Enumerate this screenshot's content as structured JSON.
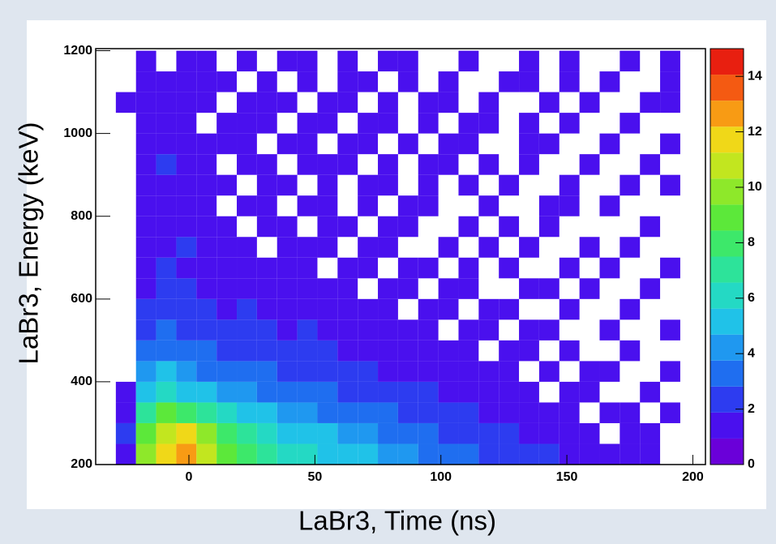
{
  "chart_data": {
    "type": "heatmap",
    "x_label": "LaBr3, Time (ns)",
    "y_label": "LaBr3, Energy (keV)",
    "xbins": [
      -37,
      -29,
      -21,
      -13,
      -5,
      3,
      11,
      19,
      27,
      35,
      43,
      51,
      59,
      67,
      75,
      83,
      91,
      99,
      107,
      115,
      123,
      131,
      139,
      147,
      155,
      163,
      171,
      179,
      187,
      195,
      203
    ],
    "ybins": [
      200,
      250,
      300,
      350,
      400,
      450,
      500,
      550,
      600,
      650,
      700,
      750,
      800,
      850,
      900,
      950,
      1000,
      1050,
      1100,
      1150,
      1200
    ],
    "z": [
      [
        0,
        1,
        10,
        12,
        13,
        11,
        9,
        8,
        7,
        6,
        6,
        5,
        5,
        5,
        4,
        4,
        3,
        3,
        3,
        2,
        2,
        2,
        2,
        1,
        1,
        1,
        1,
        1,
        0,
        0
      ],
      [
        0,
        2,
        9,
        11,
        12,
        10,
        8,
        7,
        6,
        5,
        5,
        5,
        4,
        4,
        3,
        3,
        3,
        2,
        2,
        2,
        2,
        1,
        1,
        1,
        1,
        0,
        1,
        1,
        0,
        0
      ],
      [
        0,
        1,
        7,
        9,
        8,
        7,
        6,
        5,
        5,
        4,
        4,
        3,
        3,
        3,
        3,
        2,
        2,
        2,
        2,
        1,
        1,
        1,
        1,
        1,
        0,
        1,
        1,
        0,
        1,
        0
      ],
      [
        0,
        1,
        5,
        6,
        5,
        5,
        4,
        4,
        3,
        3,
        3,
        3,
        2,
        2,
        2,
        2,
        2,
        1,
        1,
        1,
        1,
        1,
        0,
        1,
        1,
        0,
        0,
        1,
        0,
        0
      ],
      [
        0,
        0,
        4,
        5,
        4,
        3,
        3,
        3,
        3,
        2,
        2,
        2,
        2,
        2,
        1,
        1,
        1,
        1,
        1,
        1,
        1,
        0,
        1,
        0,
        1,
        1,
        0,
        0,
        1,
        0
      ],
      [
        0,
        0,
        3,
        3,
        3,
        3,
        2,
        2,
        2,
        2,
        2,
        2,
        1,
        1,
        1,
        1,
        1,
        1,
        1,
        0,
        1,
        1,
        0,
        1,
        0,
        0,
        1,
        0,
        0,
        0
      ],
      [
        0,
        0,
        2,
        3,
        2,
        2,
        2,
        2,
        2,
        1,
        2,
        1,
        1,
        1,
        1,
        1,
        1,
        0,
        1,
        1,
        0,
        1,
        1,
        0,
        0,
        1,
        0,
        0,
        1,
        0
      ],
      [
        0,
        0,
        2,
        2,
        2,
        2,
        1,
        2,
        1,
        1,
        1,
        1,
        1,
        1,
        1,
        0,
        1,
        1,
        0,
        1,
        1,
        0,
        0,
        1,
        0,
        0,
        1,
        0,
        0,
        0
      ],
      [
        0,
        0,
        1,
        2,
        2,
        1,
        1,
        1,
        1,
        1,
        1,
        1,
        1,
        0,
        1,
        1,
        0,
        1,
        1,
        0,
        0,
        1,
        1,
        0,
        1,
        0,
        0,
        1,
        0,
        0
      ],
      [
        0,
        0,
        1,
        2,
        1,
        1,
        1,
        1,
        1,
        1,
        1,
        0,
        1,
        1,
        0,
        1,
        1,
        0,
        1,
        0,
        1,
        0,
        0,
        1,
        0,
        1,
        0,
        0,
        1,
        0
      ],
      [
        0,
        0,
        1,
        1,
        2,
        1,
        1,
        1,
        0,
        1,
        1,
        1,
        0,
        1,
        1,
        0,
        0,
        1,
        0,
        1,
        0,
        1,
        0,
        0,
        1,
        0,
        1,
        0,
        0,
        0
      ],
      [
        0,
        0,
        1,
        1,
        1,
        1,
        1,
        0,
        1,
        1,
        0,
        1,
        1,
        0,
        1,
        1,
        0,
        0,
        1,
        0,
        1,
        0,
        1,
        0,
        0,
        0,
        0,
        1,
        0,
        0
      ],
      [
        0,
        0,
        1,
        1,
        1,
        1,
        0,
        1,
        1,
        0,
        1,
        1,
        0,
        1,
        0,
        1,
        1,
        0,
        0,
        1,
        0,
        0,
        1,
        1,
        0,
        1,
        0,
        0,
        0,
        0
      ],
      [
        0,
        0,
        1,
        1,
        1,
        1,
        1,
        0,
        1,
        1,
        0,
        1,
        0,
        1,
        1,
        0,
        1,
        0,
        1,
        0,
        1,
        0,
        0,
        1,
        0,
        0,
        1,
        0,
        1,
        0
      ],
      [
        0,
        0,
        1,
        2,
        1,
        1,
        0,
        1,
        1,
        0,
        1,
        1,
        1,
        0,
        1,
        0,
        1,
        1,
        0,
        1,
        0,
        1,
        0,
        0,
        1,
        0,
        0,
        1,
        0,
        0
      ],
      [
        0,
        0,
        1,
        1,
        1,
        1,
        1,
        1,
        0,
        1,
        1,
        0,
        1,
        1,
        0,
        1,
        0,
        1,
        1,
        0,
        0,
        1,
        1,
        0,
        0,
        1,
        0,
        0,
        1,
        0
      ],
      [
        0,
        0,
        1,
        1,
        1,
        0,
        1,
        1,
        1,
        0,
        1,
        1,
        0,
        1,
        1,
        0,
        1,
        0,
        1,
        1,
        0,
        1,
        0,
        1,
        0,
        0,
        1,
        0,
        0,
        0
      ],
      [
        0,
        1,
        1,
        1,
        1,
        1,
        0,
        1,
        1,
        1,
        0,
        1,
        1,
        0,
        1,
        0,
        1,
        1,
        0,
        1,
        0,
        0,
        1,
        0,
        1,
        0,
        0,
        1,
        1,
        0
      ],
      [
        0,
        0,
        1,
        1,
        1,
        1,
        1,
        0,
        1,
        0,
        1,
        0,
        1,
        1,
        0,
        1,
        0,
        1,
        0,
        0,
        1,
        1,
        0,
        1,
        0,
        1,
        0,
        0,
        1,
        0
      ],
      [
        0,
        0,
        1,
        0,
        1,
        1,
        0,
        1,
        0,
        1,
        1,
        0,
        1,
        0,
        1,
        1,
        0,
        0,
        1,
        0,
        0,
        1,
        0,
        1,
        0,
        0,
        1,
        0,
        1,
        0
      ]
    ],
    "xlim": [
      -37,
      205
    ],
    "ylim": [
      200,
      1205
    ],
    "zlim": [
      0,
      15
    ],
    "xticks": [
      0,
      50,
      100,
      150,
      200
    ],
    "yticks": [
      200,
      400,
      600,
      800,
      1000,
      1200
    ],
    "zticks": [
      0,
      2,
      4,
      6,
      8,
      10,
      12,
      14
    ],
    "colorscale": [
      "#6a00d9",
      "#4a10ee",
      "#2d3cf0",
      "#1f6ef0",
      "#1f98f0",
      "#20c2e8",
      "#24d9c4",
      "#2de39a",
      "#3de86a",
      "#5ce83a",
      "#8ee82a",
      "#c2e61f",
      "#f0d818",
      "#f89b14",
      "#f45a12",
      "#e81f10"
    ]
  }
}
